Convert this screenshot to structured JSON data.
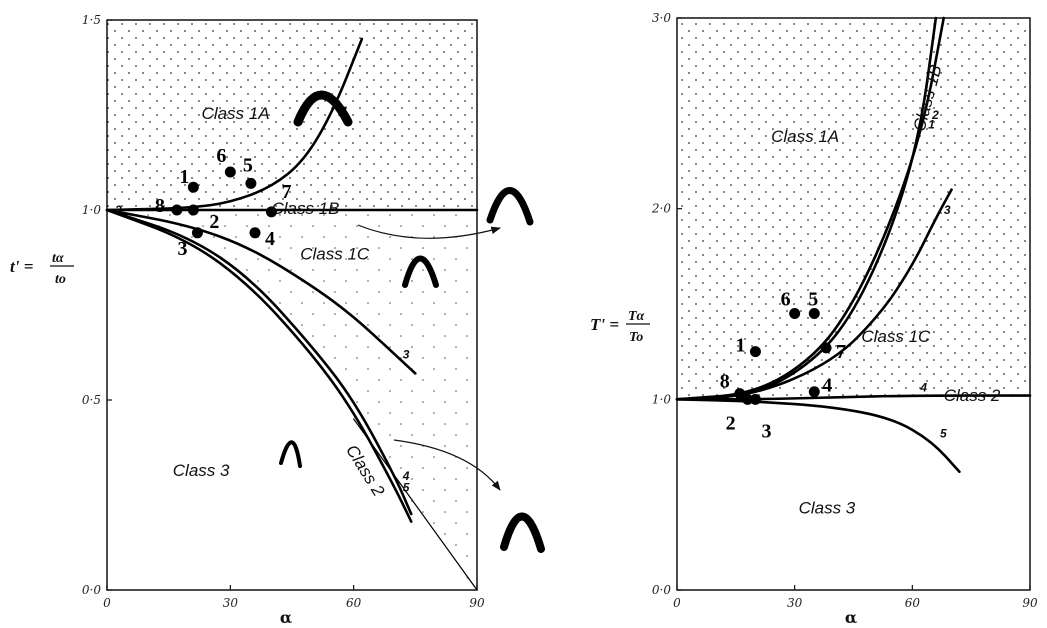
{
  "chart_data": [
    {
      "type": "line",
      "panel": "left",
      "xlabel": "α",
      "ylabel": {
        "prefix": "t' =",
        "numerator": "tα",
        "denominator": "to"
      },
      "xlim": [
        0,
        90
      ],
      "ylim": [
        0,
        1.5
      ],
      "x_ticks": [
        "0",
        "30",
        "60",
        "90"
      ],
      "y_ticks": [
        "0·0",
        "0·5",
        "1·0",
        "1·5"
      ],
      "curves": [
        {
          "name": "1",
          "x": [
            0,
            20,
            30,
            40,
            48,
            55,
            62
          ],
          "y": [
            1.0,
            1.005,
            1.02,
            1.06,
            1.13,
            1.26,
            1.45
          ]
        },
        {
          "name": "2",
          "x": [
            0,
            90
          ],
          "y": [
            1.0,
            1.0
          ]
        },
        {
          "name": "3",
          "x": [
            0,
            20,
            35,
            50,
            60,
            70,
            75
          ],
          "y": [
            1.0,
            0.96,
            0.9,
            0.8,
            0.72,
            0.62,
            0.57
          ]
        },
        {
          "name": "4",
          "x": [
            0,
            20,
            35,
            50,
            60,
            70,
            74
          ],
          "y": [
            1.0,
            0.93,
            0.82,
            0.64,
            0.5,
            0.3,
            0.2
          ]
        },
        {
          "name": "5",
          "x": [
            0,
            20,
            35,
            50,
            60,
            70,
            74
          ],
          "y": [
            1.0,
            0.92,
            0.8,
            0.62,
            0.47,
            0.27,
            0.18
          ]
        },
        {
          "name": "",
          "x": [
            60,
            90
          ],
          "y": [
            0.45,
            0.0
          ]
        }
      ],
      "points": [
        {
          "label": "1",
          "x": 21,
          "y": 1.06
        },
        {
          "label": "8",
          "x": 17,
          "y": 1.0
        },
        {
          "label": "2",
          "x": 21,
          "y": 1.0
        },
        {
          "label": "3",
          "x": 22,
          "y": 0.94
        },
        {
          "label": "6",
          "x": 30,
          "y": 1.1
        },
        {
          "label": "5",
          "x": 35,
          "y": 1.07
        },
        {
          "label": "7",
          "x": 40,
          "y": 0.995
        },
        {
          "label": "4",
          "x": 36,
          "y": 0.94
        }
      ],
      "regions": [
        {
          "label": "Class 1A",
          "x": 23,
          "y": 1.24
        },
        {
          "label": "Class 1B",
          "x": 40,
          "y": 0.99
        },
        {
          "label": "Class 1C",
          "x": 47,
          "y": 0.87
        },
        {
          "label": "Class 2",
          "x": 58,
          "y": 0.37
        },
        {
          "label": "Class 3",
          "x": 16,
          "y": 0.3
        }
      ],
      "shading": "dotted"
    },
    {
      "type": "line",
      "panel": "right",
      "xlabel": "α",
      "ylabel": {
        "prefix": "T' =",
        "numerator": "Tα",
        "denominator": "To"
      },
      "xlim": [
        0,
        90
      ],
      "ylim": [
        0,
        3.0
      ],
      "x_ticks": [
        "0",
        "30",
        "60",
        "90"
      ],
      "y_ticks": [
        "0·0",
        "1·0",
        "2·0",
        "3·0"
      ],
      "curves": [
        {
          "name": "1",
          "x": [
            0,
            20,
            35,
            45,
            55,
            62,
            66
          ],
          "y": [
            1.0,
            1.02,
            1.2,
            1.45,
            1.9,
            2.4,
            3.0
          ]
        },
        {
          "name": "2",
          "x": [
            0,
            20,
            35,
            45,
            55,
            63,
            68
          ],
          "y": [
            1.0,
            1.03,
            1.22,
            1.5,
            1.95,
            2.45,
            3.0
          ]
        },
        {
          "name": "3",
          "x": [
            0,
            20,
            40,
            52,
            60,
            66,
            70
          ],
          "y": [
            1.0,
            1.02,
            1.2,
            1.45,
            1.7,
            1.95,
            2.1
          ]
        },
        {
          "name": "4",
          "x": [
            0,
            20,
            40,
            60,
            90
          ],
          "y": [
            1.0,
            1.0,
            1.01,
            1.02,
            1.02
          ]
        },
        {
          "name": "5",
          "x": [
            0,
            20,
            40,
            55,
            65,
            72
          ],
          "y": [
            1.0,
            0.99,
            0.96,
            0.9,
            0.78,
            0.62
          ]
        }
      ],
      "points": [
        {
          "label": "6",
          "x": 30,
          "y": 1.45
        },
        {
          "label": "5",
          "x": 35,
          "y": 1.45
        },
        {
          "label": "1",
          "x": 20,
          "y": 1.25
        },
        {
          "label": "7",
          "x": 38,
          "y": 1.27
        },
        {
          "label": "8",
          "x": 16,
          "y": 1.03
        },
        {
          "label": "4",
          "x": 35,
          "y": 1.04
        },
        {
          "label": "2",
          "x": 18,
          "y": 1.0
        },
        {
          "label": "3",
          "x": 20,
          "y": 1.0
        }
      ],
      "regions": [
        {
          "label": "Class 1A",
          "x": 24,
          "y": 2.35
        },
        {
          "label": "Class 1B",
          "x": 63,
          "y": 2.4
        },
        {
          "label": "Class 1C",
          "x": 47,
          "y": 1.3
        },
        {
          "label": "Class 2",
          "x": 68,
          "y": 0.99
        },
        {
          "label": "Class 3",
          "x": 31,
          "y": 0.4
        }
      ],
      "shading": "dotted"
    }
  ]
}
